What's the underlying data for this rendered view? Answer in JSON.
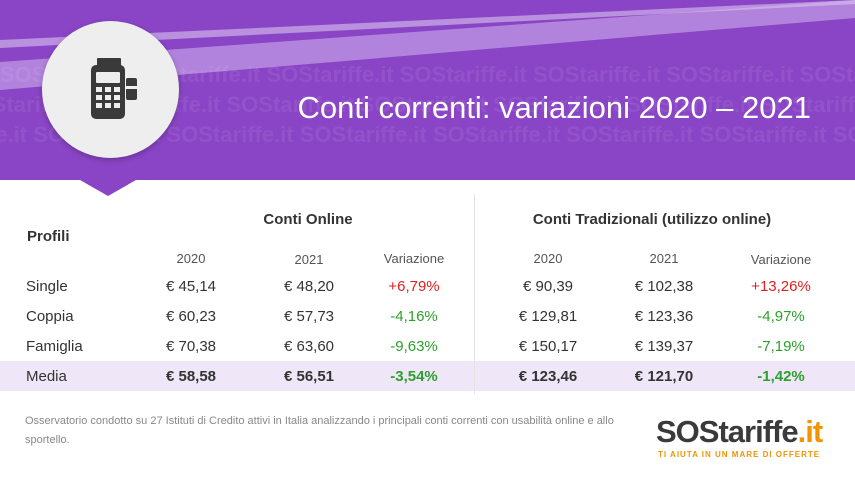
{
  "header": {
    "title": "Conti correnti: variazioni 2020 – 2021",
    "watermark": "SOStariffe.it",
    "icon": "pos-terminal-icon"
  },
  "table": {
    "profiles_label": "Profili",
    "online_group": "Conti Online",
    "traditional_group": "Conti Tradizionali (utilizzo online)",
    "year_2020": "2020",
    "year_2021": "2021",
    "variation_label": "Variazione",
    "rows": [
      {
        "name": "Single",
        "on_2020": "€ 45,14",
        "on_2021": "€ 48,20",
        "on_var": "+6,79%",
        "tr_2020": "€ 90,39",
        "tr_2021": "€ 102,38",
        "tr_var": "+13,26%"
      },
      {
        "name": "Coppia",
        "on_2020": "€ 60,23",
        "on_2021": "€ 57,73",
        "on_var": "-4,16%",
        "tr_2020": "€ 129,81",
        "tr_2021": "€ 123,36",
        "tr_var": "-4,97%"
      },
      {
        "name": "Famiglia",
        "on_2020": "€ 70,38",
        "on_2021": "€ 63,60",
        "on_var": "-9,63%",
        "tr_2020": "€ 150,17",
        "tr_2021": "€ 139,37",
        "tr_var": "-7,19%"
      },
      {
        "name": "Media",
        "on_2020": "€ 58,58",
        "on_2021": "€ 56,51",
        "on_var": "-3,54%",
        "tr_2020": "€ 123,46",
        "tr_2021": "€ 121,70",
        "tr_var": "-1,42%"
      }
    ]
  },
  "footnote": "Osservatorio condotto su 27 Istituti di Credito attivi in Italia analizzando i principali conti correnti con usabilità online e allo sportello.",
  "logo": {
    "name_a": "SOStariffe",
    "name_b": ".it",
    "tagline": "TI AIUTA IN UN MARE DI OFFERTE"
  },
  "colors": {
    "banner": "#8a45c6",
    "positive": "#e02020",
    "negative": "#2ca02c",
    "highlight_row": "#efe6f7",
    "logo_accent": "#f29400"
  }
}
